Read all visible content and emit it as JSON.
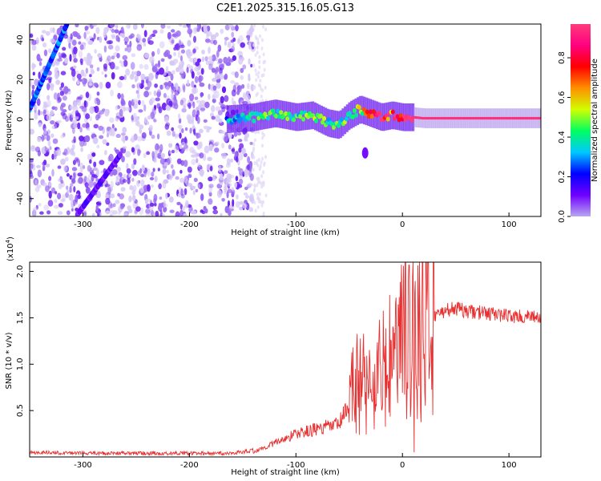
{
  "title": "C2E1.2025.315.16.05.G13",
  "chart_data": [
    {
      "type": "heatmap",
      "id": "spectrogram",
      "xlabel": "Height of straight line (km)",
      "ylabel": "Frequency (Hz)",
      "xlim": [
        -350,
        130
      ],
      "ylim": [
        -49,
        48
      ],
      "x_ticks": [
        -300,
        -200,
        -100,
        0,
        100
      ],
      "x_tick_labels": [
        "-300",
        "-200",
        "-100",
        "0",
        "100"
      ],
      "y_ticks": [
        -40,
        -20,
        0,
        20,
        40
      ],
      "y_tick_labels": [
        "-40",
        "-20",
        "0",
        "20",
        "40"
      ],
      "colorbar": {
        "label": "Normalized spectral amplitude",
        "range": [
          0,
          0.97
        ],
        "ticks": [
          0,
          0.2,
          0.4,
          0.6,
          0.8
        ],
        "tick_labels": [
          "0.0",
          "0.2",
          "0.4",
          "0.6",
          "0.8"
        ],
        "colors": [
          "#b8a8f0",
          "#7000ff",
          "#0000ff",
          "#00c8ff",
          "#00ff60",
          "#d0ff00",
          "#ff9000",
          "#ff0000",
          "#ff0080",
          "#ff3c7a"
        ]
      },
      "features": [
        {
          "name": "noise-field",
          "x_range": [
            -350,
            -140
          ],
          "amplitude": 0.05
        },
        {
          "name": "aliased-streak-upper",
          "x_start": -350,
          "y_start": 5,
          "x_end": -315,
          "y_end": 48,
          "amplitude": 0.25
        },
        {
          "name": "aliased-streak-lower",
          "x_start": -305,
          "y_start": -48,
          "x_end": -265,
          "y_end": -18,
          "amplitude": 0.12
        },
        {
          "name": "carrier-track",
          "x": [
            -165,
            -140,
            -120,
            -100,
            -85,
            -70,
            -60,
            -50,
            -40,
            -30,
            -20,
            -10,
            0,
            10,
            20,
            40,
            80,
            130
          ],
          "y": [
            0,
            1,
            3,
            1,
            2,
            -2,
            -3,
            2,
            5,
            3,
            1,
            2,
            1,
            1,
            0.5,
            0.5,
            0.5,
            0.5
          ],
          "amplitude": [
            0.35,
            0.4,
            0.45,
            0.45,
            0.5,
            0.45,
            0.45,
            0.5,
            0.6,
            0.75,
            0.85,
            0.9,
            0.9,
            0.95,
            0.95,
            0.95,
            0.95,
            0.95
          ]
        },
        {
          "name": "secondary-blob",
          "x": -35,
          "y": -17,
          "amplitude": 0.1
        }
      ]
    },
    {
      "type": "line",
      "id": "snr",
      "xlabel": "Height of straight line (km)",
      "ylabel": "SNR (10 * v/v)",
      "y_multiplier_label": "(x10",
      "y_multiplier_exponent": "4",
      "y_multiplier_suffix": ")",
      "xlim": [
        -350,
        130
      ],
      "ylim": [
        0,
        2.1
      ],
      "x_ticks": [
        -300,
        -200,
        -100,
        0,
        100
      ],
      "x_tick_labels": [
        "-300",
        "-200",
        "-100",
        "0",
        "100"
      ],
      "y_ticks": [
        0.5,
        1.0,
        1.5,
        2.0
      ],
      "y_tick_labels": [
        "0.5",
        "1.0",
        "1.5",
        "2.0"
      ],
      "color": "#e83030",
      "series": [
        {
          "name": "SNR",
          "x": [
            -350,
            -300,
            -250,
            -200,
            -160,
            -140,
            -120,
            -100,
            -80,
            -60,
            -50,
            -45,
            -40,
            -30,
            -20,
            -10,
            -5,
            0,
            5,
            10,
            15,
            20,
            30,
            40,
            50,
            60,
            80,
            100,
            130
          ],
          "y": [
            0.03,
            0.02,
            0.02,
            0.02,
            0.02,
            0.05,
            0.15,
            0.25,
            0.3,
            0.35,
            0.55,
            0.8,
            0.85,
            0.75,
            0.9,
            1.05,
            1.15,
            1.25,
            1.3,
            1.35,
            1.4,
            1.45,
            1.52,
            1.58,
            1.6,
            1.57,
            1.55,
            1.52,
            1.5
          ],
          "peak": {
            "x": 10,
            "y": 2.1
          },
          "dip": {
            "x": 11,
            "y": 0.05
          }
        }
      ]
    }
  ]
}
